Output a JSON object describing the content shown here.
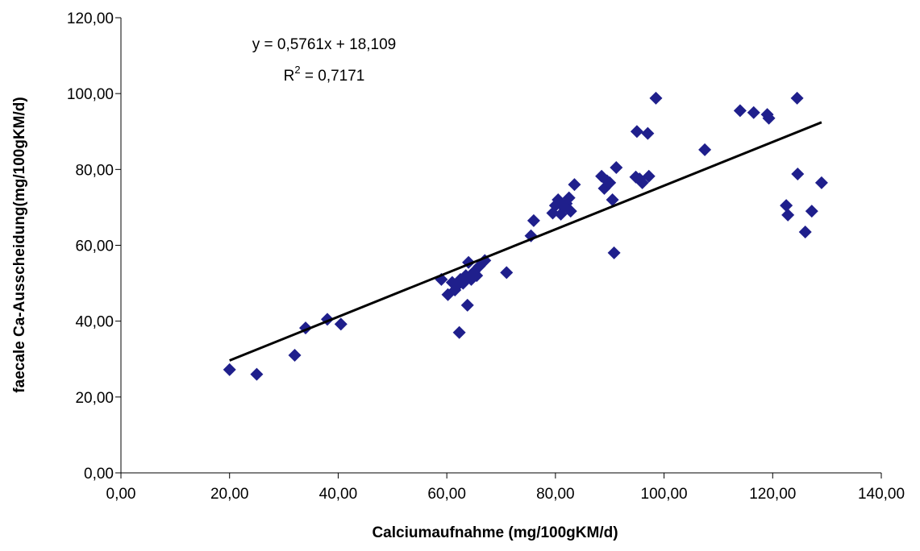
{
  "chart_data": {
    "type": "scatter",
    "title": "",
    "xlabel": "Calciumaufnahme (mg/100gKM/d)",
    "ylabel": "faecale Ca-Ausscheidung(mg/100gKM/d)",
    "xlim": [
      0,
      140
    ],
    "ylim": [
      0,
      120
    ],
    "x_ticks": [
      "0,00",
      "20,00",
      "40,00",
      "60,00",
      "80,00",
      "100,00",
      "120,00",
      "140,00"
    ],
    "y_ticks": [
      "0,00",
      "20,00",
      "40,00",
      "60,00",
      "80,00",
      "100,00",
      "120,00"
    ],
    "grid": false,
    "legend": "none",
    "marker": "diamond",
    "marker_color": "#1f1f8c",
    "trendline_color": "#000000",
    "trendline": {
      "slope": 0.5761,
      "intercept": 18.109,
      "x_range": [
        20,
        129
      ]
    },
    "equation_label": "y = 0,5761x + 18,109",
    "r2_label": {
      "prefix": "R",
      "superscript": "2",
      "suffix": " = 0,7171"
    },
    "points": [
      [
        20,
        27.2
      ],
      [
        25,
        26
      ],
      [
        32,
        31
      ],
      [
        34,
        38.2
      ],
      [
        38,
        40.5
      ],
      [
        40.5,
        39.2
      ],
      [
        59,
        51
      ],
      [
        60.2,
        47
      ],
      [
        61,
        50.2
      ],
      [
        61.5,
        48.2
      ],
      [
        62,
        49.5
      ],
      [
        62.3,
        37
      ],
      [
        62.5,
        51
      ],
      [
        63,
        50
      ],
      [
        63.5,
        52
      ],
      [
        63.8,
        44.2
      ],
      [
        64,
        55.5
      ],
      [
        64.5,
        51
      ],
      [
        65,
        53
      ],
      [
        65.5,
        52
      ],
      [
        66,
        54.5
      ],
      [
        67,
        56
      ],
      [
        71,
        52.8
      ],
      [
        75.5,
        62.5
      ],
      [
        76,
        66.5
      ],
      [
        79.5,
        68.5
      ],
      [
        80,
        70.5
      ],
      [
        80.5,
        72
      ],
      [
        81,
        68.2
      ],
      [
        81.5,
        70
      ],
      [
        82,
        71
      ],
      [
        82.5,
        72.5
      ],
      [
        82.8,
        69
      ],
      [
        83.5,
        76
      ],
      [
        88.5,
        78.2
      ],
      [
        89,
        75
      ],
      [
        89.5,
        77
      ],
      [
        90,
        76.5
      ],
      [
        90.5,
        72
      ],
      [
        90.8,
        58
      ],
      [
        91.2,
        80.5
      ],
      [
        94.8,
        78
      ],
      [
        95,
        90
      ],
      [
        95.5,
        77.5
      ],
      [
        96,
        76.5
      ],
      [
        97,
        89.5
      ],
      [
        97.2,
        78.2
      ],
      [
        98.5,
        98.8
      ],
      [
        107.5,
        85.2
      ],
      [
        114,
        95.5
      ],
      [
        116.5,
        95
      ],
      [
        119,
        94.5
      ],
      [
        119.3,
        93.5
      ],
      [
        122.5,
        70.5
      ],
      [
        122.8,
        68
      ],
      [
        124.5,
        98.8
      ],
      [
        124.6,
        78.8
      ],
      [
        126,
        63.5
      ],
      [
        127.2,
        69
      ],
      [
        129,
        76.5
      ]
    ]
  }
}
